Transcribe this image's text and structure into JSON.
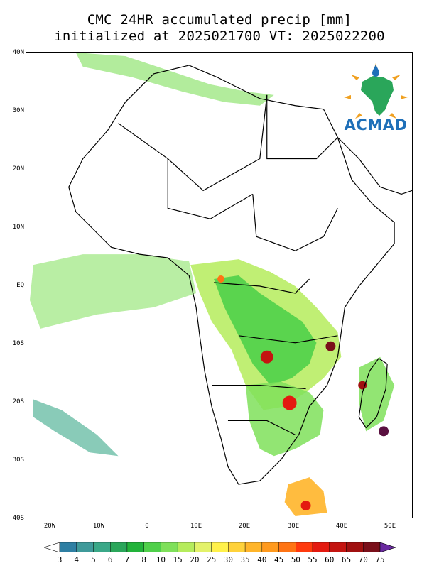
{
  "header": {
    "title_line1": "CMC 24HR accumulated precip [mm]",
    "title_line2": "initialized at 2025021700 VT: 2025022200"
  },
  "map": {
    "lat_labels": [
      "40N",
      "30N",
      "20N",
      "10N",
      "EQ",
      "10S",
      "20S",
      "30S",
      "40S"
    ],
    "lon_labels": [
      "20W",
      "10W",
      "0",
      "10E",
      "20E",
      "30E",
      "40E",
      "50E"
    ],
    "extent": {
      "lon_min": -25,
      "lon_max": 54,
      "lat_min": -40,
      "lat_max": 40
    }
  },
  "legend": {
    "values": [
      "3",
      "4",
      "5",
      "6",
      "7",
      "8",
      "10",
      "15",
      "20",
      "25",
      "30",
      "35",
      "40",
      "45",
      "50",
      "55",
      "60",
      "65",
      "70",
      "75"
    ],
    "colors": [
      "#2e7fa3",
      "#3f9a9a",
      "#3aa888",
      "#2aa65a",
      "#22b33a",
      "#4fd04a",
      "#7fe05a",
      "#b5ec5c",
      "#e3f26a",
      "#fff14a",
      "#ffd23a",
      "#ffb52a",
      "#ff9a1e",
      "#ff7414",
      "#ff3a0e",
      "#e41a10",
      "#c41410",
      "#a01010",
      "#7a0f1a",
      "#5a1040"
    ],
    "under_color": "#ffffff",
    "over_color": "#6a2aa0"
  },
  "logo": {
    "text": "ACMAD"
  }
}
